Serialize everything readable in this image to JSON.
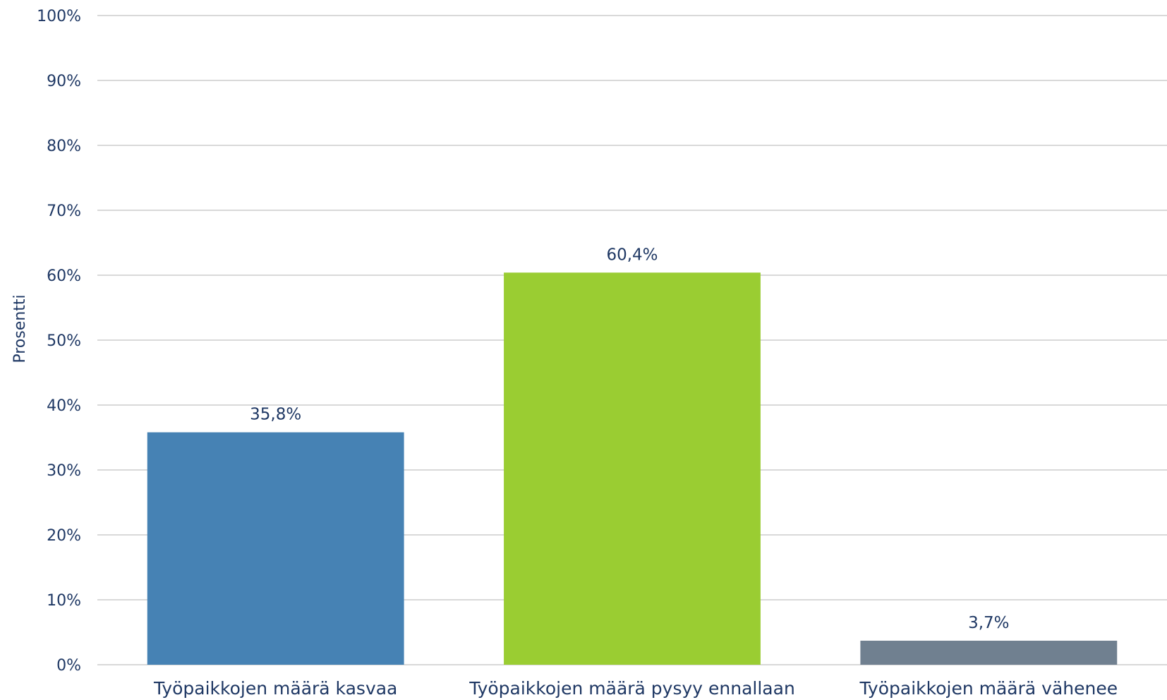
{
  "chart_data": {
    "type": "bar",
    "categories": [
      "Työpaikkojen määrä kasvaa",
      "Työpaikkojen määrä pysyy ennallaan",
      "Työpaikkojen määrä vähenee"
    ],
    "values": [
      35.8,
      60.4,
      3.7
    ],
    "data_labels": [
      "35,8%",
      "60,4%",
      "3,7%"
    ],
    "colors": [
      "#4682b4",
      "#9acd32",
      "#708090"
    ],
    "title": "",
    "xlabel": "",
    "ylabel": "Prosentti",
    "ylim": [
      0,
      100
    ],
    "yticks": [
      0,
      10,
      20,
      30,
      40,
      50,
      60,
      70,
      80,
      90,
      100
    ],
    "ytick_labels": [
      "0%",
      "10%",
      "20%",
      "30%",
      "40%",
      "50%",
      "60%",
      "70%",
      "80%",
      "90%",
      "100%"
    ],
    "grid": true,
    "legend": "none"
  }
}
